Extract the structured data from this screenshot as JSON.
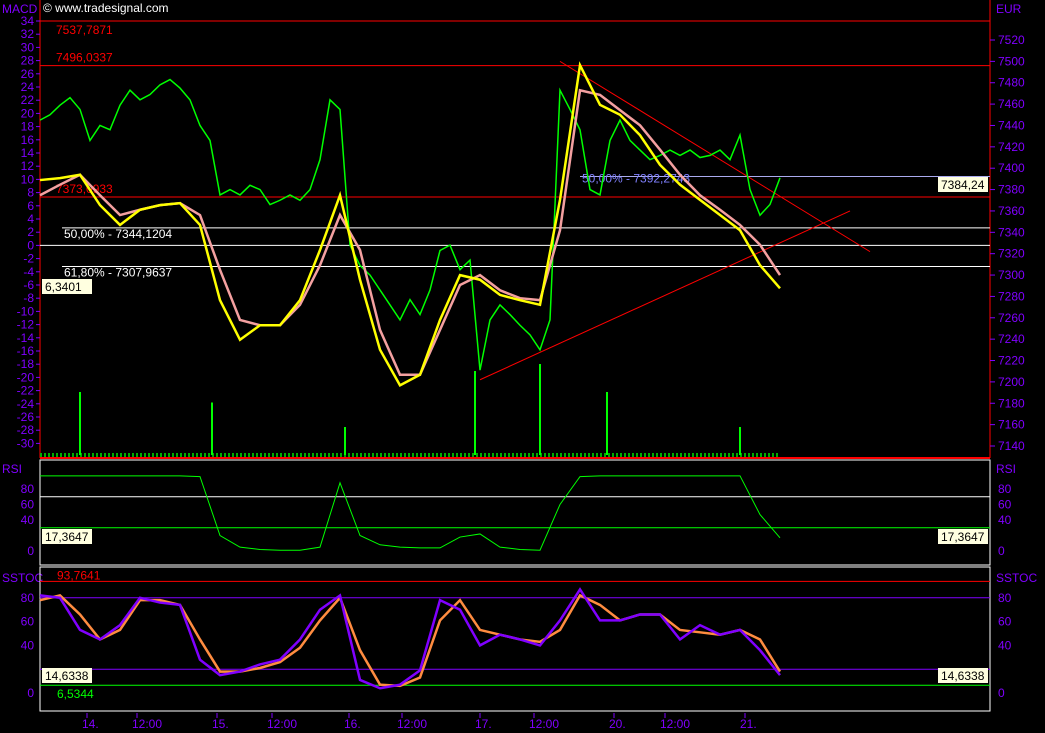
{
  "watermark": "© www.tradesignal.com",
  "colors": {
    "axis_text": "#8000ff",
    "price": "#00ff00",
    "macd": "#ffff00",
    "signal": "#f4a0a0",
    "red": "#ff0000",
    "fast": "#8000ff",
    "slow": "#ff8c40",
    "label_bg": "#ffffe0"
  },
  "chart_data": [
    {
      "type": "line",
      "panel": "MACD",
      "left_axis_label": "MACD",
      "right_axis_label": "EUR",
      "left_ticks": [
        34,
        32,
        30,
        28,
        26,
        24,
        22,
        20,
        18,
        16,
        14,
        12,
        10,
        8,
        6,
        4,
        2,
        0,
        -2,
        -4,
        -6,
        -8,
        -10,
        -12,
        -14,
        -16,
        -18,
        -20,
        -22,
        -24,
        -26,
        -28,
        -30
      ],
      "right_ticks": [
        7520,
        7500,
        7480,
        7460,
        7440,
        7420,
        7400,
        7380,
        7360,
        7340,
        7320,
        7300,
        7280,
        7260,
        7240,
        7220,
        7200,
        7180,
        7160,
        7140
      ],
      "left_current": "6,3401",
      "right_current": "7384,24",
      "price_series": [
        7445,
        7450,
        7459,
        7466,
        7455,
        7426,
        7440,
        7436,
        7459,
        7473,
        7464,
        7469,
        7478,
        7483,
        7475,
        7464,
        7440,
        7426,
        7375,
        7380,
        7375,
        7384,
        7380,
        7366,
        7370,
        7375,
        7370,
        7380,
        7408,
        7464,
        7455,
        7328,
        7309,
        7300,
        7286,
        7272,
        7258,
        7277,
        7263,
        7286,
        7323,
        7328,
        7305,
        7314,
        7211,
        7258,
        7272,
        7263,
        7253,
        7244,
        7230,
        7258,
        7473,
        7455,
        7436,
        7380,
        7375,
        7426,
        7445,
        7426,
        7417,
        7408,
        7412,
        7417,
        7412,
        7417,
        7410,
        7412,
        7417,
        7408,
        7431,
        7380,
        7356,
        7366,
        7391
      ],
      "macd_series": [
        9.9,
        10.2,
        10.7,
        6.1,
        3.1,
        5.4,
        6.1,
        6.4,
        3.1,
        -8.3,
        -14.3,
        -12.1,
        -12.1,
        -8.3,
        -0.7,
        7.6,
        -5.2,
        -15.8,
        -21.2,
        -19.6,
        -11.3,
        -4.5,
        -5.2,
        -7.5,
        -8.3,
        -9.0,
        6.9,
        27.3,
        21.3,
        19.8,
        16.7,
        12.2,
        9.2,
        6.9,
        4.6,
        2.3,
        -3.0,
        -6.5
      ],
      "signal_series": [
        7.6,
        9.2,
        10.7,
        7.6,
        4.6,
        5.4,
        6.1,
        6.4,
        4.6,
        -3.7,
        -11.3,
        -12.1,
        -12.1,
        -9.0,
        -3.0,
        4.6,
        -0.7,
        -12.8,
        -19.6,
        -19.6,
        -12.8,
        -6.0,
        -4.5,
        -6.8,
        -8.0,
        -8.3,
        2.3,
        23.5,
        22.8,
        20.5,
        18.2,
        14.5,
        10.7,
        7.6,
        5.4,
        3.1,
        0.1,
        -4.5
      ],
      "volume_spikes": [
        {
          "at": "14.",
          "rel": 0.9
        },
        {
          "at": "15.",
          "rel": 0.75
        },
        {
          "at": "16.",
          "rel": 0.4
        },
        {
          "at": "17.",
          "rel": 1.2
        },
        {
          "at": "17. 12:00",
          "rel": 1.3
        },
        {
          "at": "20.",
          "rel": 0.9
        },
        {
          "at": "21.",
          "rel": 0.4
        }
      ],
      "levels": [
        {
          "price": 7537.7871,
          "label": "7537,7871",
          "color": "#ff0000"
        },
        {
          "price": 7496.0337,
          "label": "7496,0337",
          "color": "#ff0000"
        },
        {
          "price": 7373.0933,
          "label": "7373,0933",
          "color": "#ff0000"
        },
        {
          "price": 7344.1204,
          "label": "50,00% - 7344,1204",
          "color": "#ffffff"
        },
        {
          "price": 7307.9637,
          "label": "61,80% - 7307,9637",
          "color": "#ffffff"
        },
        {
          "price": 7392.2743,
          "label": "50,00% - 7392,2743",
          "color": "#8080ff"
        }
      ],
      "macd_zero": 0,
      "trendlines": [
        {
          "from_price": 7500,
          "to_price": 7350
        },
        {
          "from_price": 7202,
          "to_price": 7360
        }
      ]
    },
    {
      "type": "line",
      "panel": "RSI",
      "axis_label": "RSI",
      "ticks": [
        80,
        60,
        40,
        0
      ],
      "levels": [
        70,
        30
      ],
      "left_current": "17,3647",
      "right_current": "17,3647",
      "values": [
        97,
        97,
        97,
        97,
        97,
        97,
        97,
        97,
        96,
        20,
        5,
        2,
        1,
        1,
        5,
        88,
        20,
        8,
        5,
        4,
        4,
        18,
        22,
        5,
        2,
        1,
        60,
        96,
        97,
        97,
        97,
        97,
        97,
        97,
        97,
        97,
        47,
        17
      ]
    },
    {
      "type": "line",
      "panel": "SSTOC",
      "axis_label": "SSTOC",
      "ticks": [
        80,
        60,
        40,
        0
      ],
      "levels": [
        80,
        20
      ],
      "upper_mark": {
        "value": 93.7641,
        "label": "93,7641"
      },
      "lower_mark": {
        "value": 6.5344,
        "label": "6,5344"
      },
      "left_current": "14,6338",
      "right_current": "14,6338",
      "fast": [
        82,
        80,
        53,
        45,
        57,
        80,
        76,
        74,
        28,
        15,
        18,
        24,
        28,
        45,
        70,
        82,
        11,
        4,
        7,
        19,
        78,
        70,
        40,
        49,
        45,
        40,
        61,
        87,
        61,
        61,
        66,
        66,
        45,
        57,
        49,
        53,
        36,
        15
      ],
      "slow": [
        78,
        82,
        66,
        45,
        53,
        78,
        78,
        74,
        45,
        18,
        18,
        21,
        26,
        38,
        61,
        80,
        36,
        7,
        6,
        13,
        61,
        78,
        53,
        49,
        45,
        43,
        53,
        82,
        74,
        61,
        66,
        66,
        53,
        51,
        49,
        53,
        45,
        18
      ]
    }
  ],
  "x_labels": [
    "14.",
    "12:00",
    "15.",
    "12:00",
    "16.",
    "12:00",
    "17.",
    "12:00",
    "20.",
    "12:00",
    "21."
  ]
}
